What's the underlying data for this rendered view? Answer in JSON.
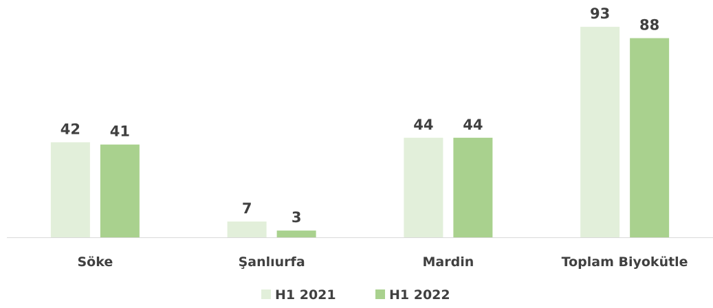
{
  "chart_data": {
    "type": "bar",
    "categories": [
      "Söke",
      "Şanlıurfa",
      "Mardin",
      "Toplam Biyokütle"
    ],
    "series": [
      {
        "name": "H1 2021",
        "values": [
          42,
          7,
          44,
          93
        ],
        "color": "#e2efda"
      },
      {
        "name": "H1 2022",
        "values": [
          41,
          3,
          44,
          88
        ],
        "color": "#a9d18e"
      }
    ],
    "data_labels": true,
    "legend": "bottom",
    "grid": false,
    "axis_color": "#d9d9d9",
    "ylim": [
      0,
      100
    ]
  }
}
